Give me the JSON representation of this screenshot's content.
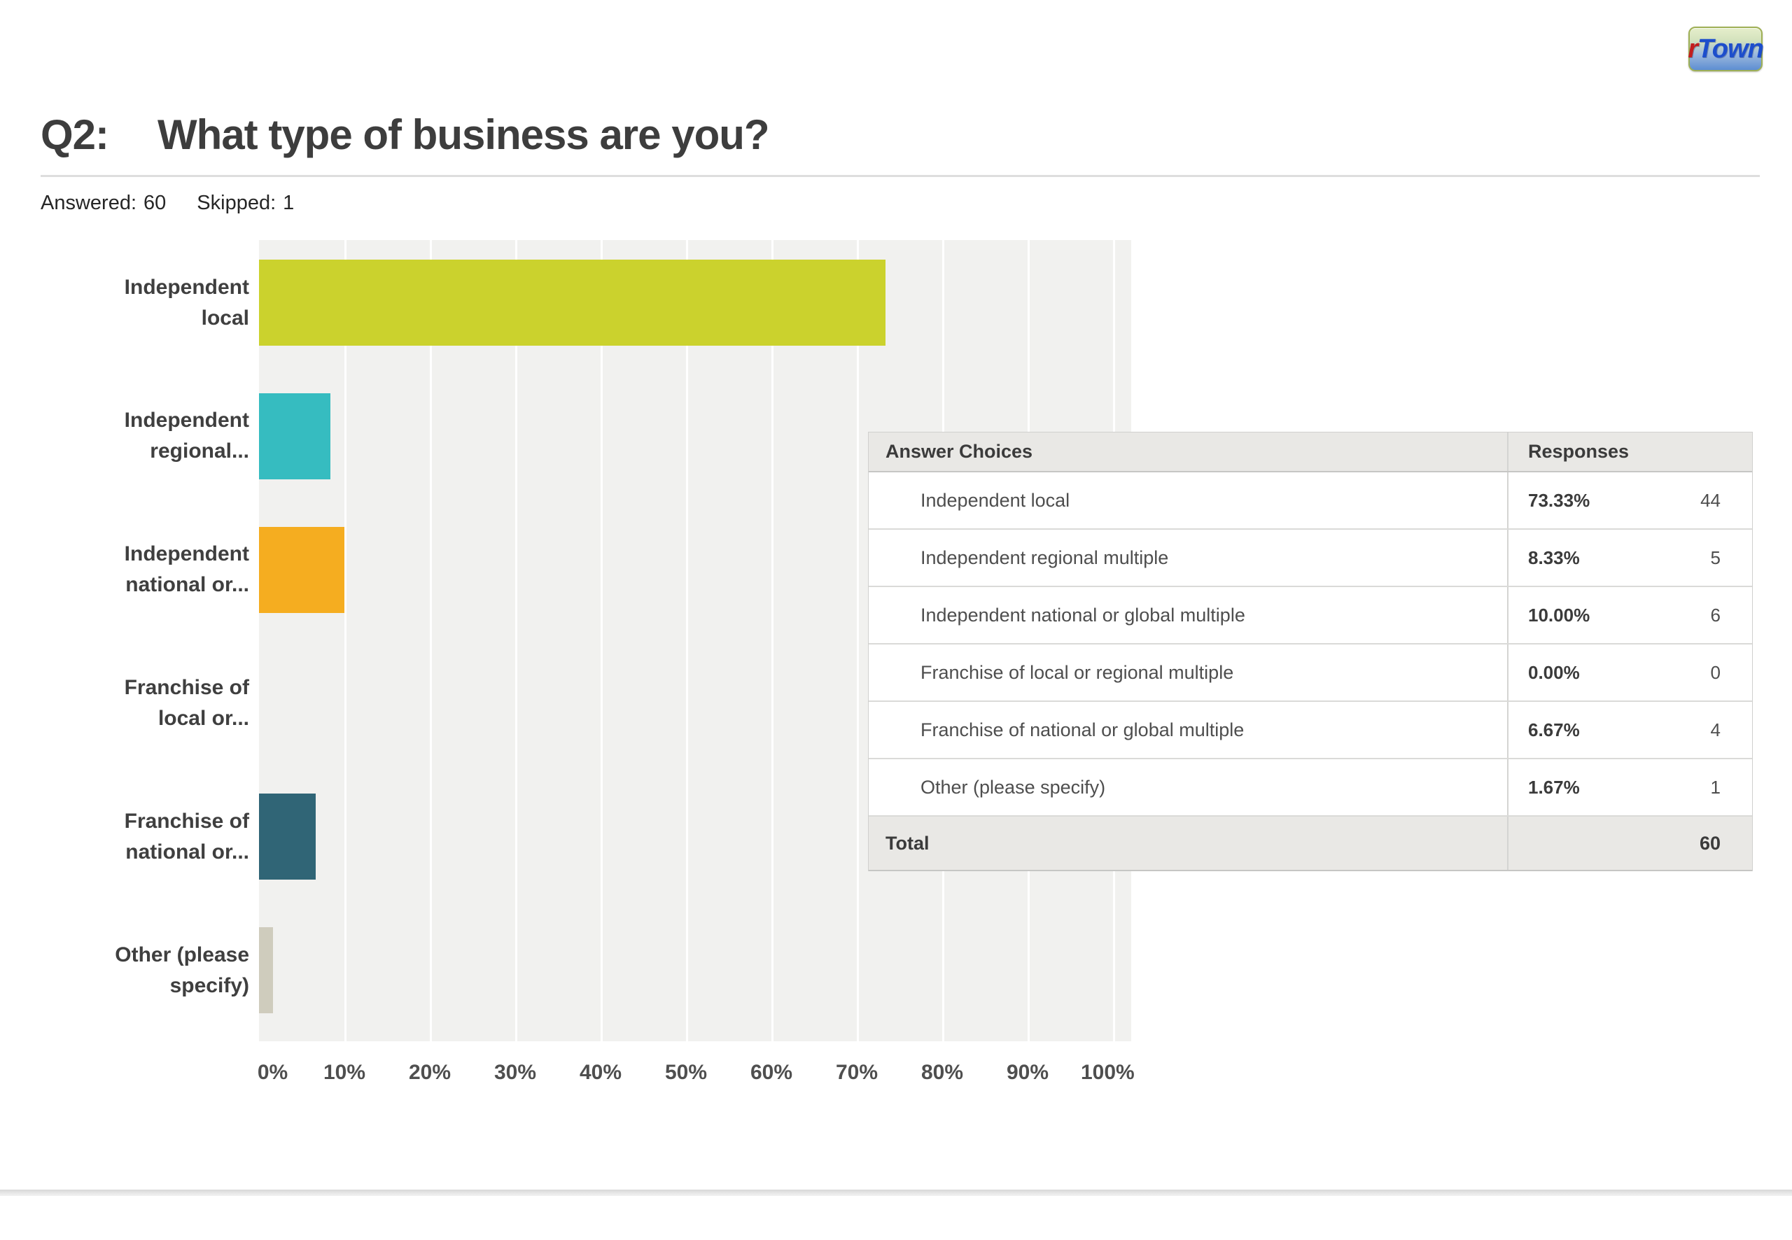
{
  "brand": {
    "logo_text_red": "r",
    "logo_text_blue": "Town"
  },
  "header": {
    "question_number": "Q2:",
    "question_title": "What type of business are you?",
    "answered_label": "Answered:",
    "answered_count": "60",
    "skipped_label": "Skipped:",
    "skipped_count": "1"
  },
  "chart_data": {
    "type": "bar",
    "orientation": "horizontal",
    "xlim": [
      0,
      100
    ],
    "grid": true,
    "x_tick_labels": [
      "0%",
      "10%",
      "20%",
      "30%",
      "40%",
      "50%",
      "60%",
      "70%",
      "80%",
      "90%",
      "100%"
    ],
    "plot_background": "#f1f1ef",
    "gridline_color": "#ffffff",
    "categories": [
      "Independent local",
      "Independent regional multiple",
      "Independent national or global multiple",
      "Franchise of local or regional multiple",
      "Franchise of national or global multiple",
      "Other (please specify)"
    ],
    "category_display_lines": [
      [
        "Independent",
        "local"
      ],
      [
        "Independent",
        "regional..."
      ],
      [
        "Independent",
        "national or..."
      ],
      [
        "Franchise of",
        "local or..."
      ],
      [
        "Franchise of",
        "national or..."
      ],
      [
        "Other (please",
        "specify)"
      ]
    ],
    "values": [
      73.33,
      8.33,
      10.0,
      0.0,
      6.67,
      1.67
    ],
    "bar_colors": [
      "#cbd22d",
      "#36bcc0",
      "#f5ad20",
      null,
      "#306576",
      "#cfccbd"
    ]
  },
  "table": {
    "col_headers": [
      "Answer Choices",
      "Responses"
    ],
    "rows": [
      {
        "label": "Independent local",
        "percent": "73.33%",
        "count": "44"
      },
      {
        "label": "Independent regional multiple",
        "percent": "8.33%",
        "count": "5"
      },
      {
        "label": "Independent national or global multiple",
        "percent": "10.00%",
        "count": "6"
      },
      {
        "label": "Franchise of local or regional multiple",
        "percent": "0.00%",
        "count": "0"
      },
      {
        "label": "Franchise of national or global multiple",
        "percent": "6.67%",
        "count": "4"
      },
      {
        "label": "Other (please specify)",
        "percent": "1.67%",
        "count": "1"
      }
    ],
    "total": {
      "label": "Total",
      "count": "60"
    }
  }
}
